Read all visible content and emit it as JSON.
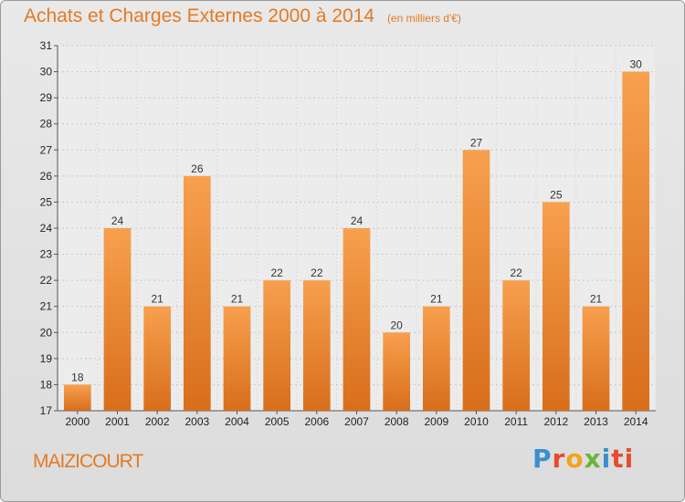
{
  "header": {
    "title": "Achats et Charges Externes 2000 à 2014",
    "subtitle": "(en milliers d'€)"
  },
  "footer": {
    "commune": "MAIZICOURT",
    "logo_letters": [
      "P",
      "r",
      "o",
      "x",
      "i",
      "ti"
    ]
  },
  "colors": {
    "bar_top": "#f7a04e",
    "bar_bottom": "#d86e1c",
    "title": "#e47a24"
  },
  "chart_data": {
    "type": "bar",
    "title": "Achats et Charges Externes 2000 à 2014",
    "subtitle": "(en milliers d'€)",
    "categories": [
      "2000",
      "2001",
      "2002",
      "2003",
      "2004",
      "2005",
      "2006",
      "2007",
      "2008",
      "2009",
      "2010",
      "2011",
      "2012",
      "2013",
      "2014"
    ],
    "values": [
      18,
      24,
      21,
      26,
      21,
      22,
      22,
      24,
      20,
      21,
      27,
      22,
      25,
      21,
      30
    ],
    "ylim": [
      17,
      31
    ],
    "yticks": [
      17,
      18,
      19,
      20,
      21,
      22,
      23,
      24,
      25,
      26,
      27,
      28,
      29,
      30,
      31
    ],
    "grid": true
  }
}
